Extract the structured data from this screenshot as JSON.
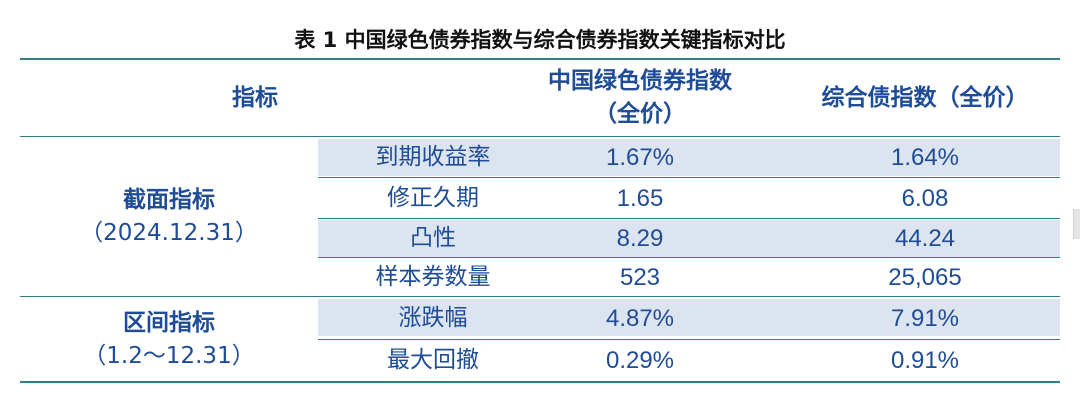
{
  "table": {
    "caption": "表 1  中国绿色债券指数与综合债券指数关键指标对比",
    "header": {
      "col_indicator": "指标",
      "col_green_line1": "中国绿色债券指数",
      "col_green_line2": "（全价）",
      "col_composite": "综合债指数（全价）"
    },
    "groups": [
      {
        "label": "截面指标",
        "sublabel": "（2024.12.31）",
        "rows": [
          {
            "metric": "到期收益率",
            "green": "1.67%",
            "composite": "1.64%",
            "shaded": true
          },
          {
            "metric": "修正久期",
            "green": "1.65",
            "composite": "6.08",
            "shaded": false
          },
          {
            "metric": "凸性",
            "green": "8.29",
            "composite": "44.24",
            "shaded": true
          },
          {
            "metric": "样本券数量",
            "green": "523",
            "composite": "25,065",
            "shaded": false
          }
        ]
      },
      {
        "label": "区间指标",
        "sublabel": "（1.2～12.31）",
        "rows": [
          {
            "metric": "涨跌幅",
            "green": "4.87%",
            "composite": "7.91%",
            "shaded": true
          },
          {
            "metric": "最大回撤",
            "green": "0.29%",
            "composite": "0.91%",
            "shaded": false
          }
        ]
      }
    ],
    "colors": {
      "text": "#1e4c96",
      "shade": "#dce4f0",
      "rule": "#2f7f86"
    }
  }
}
